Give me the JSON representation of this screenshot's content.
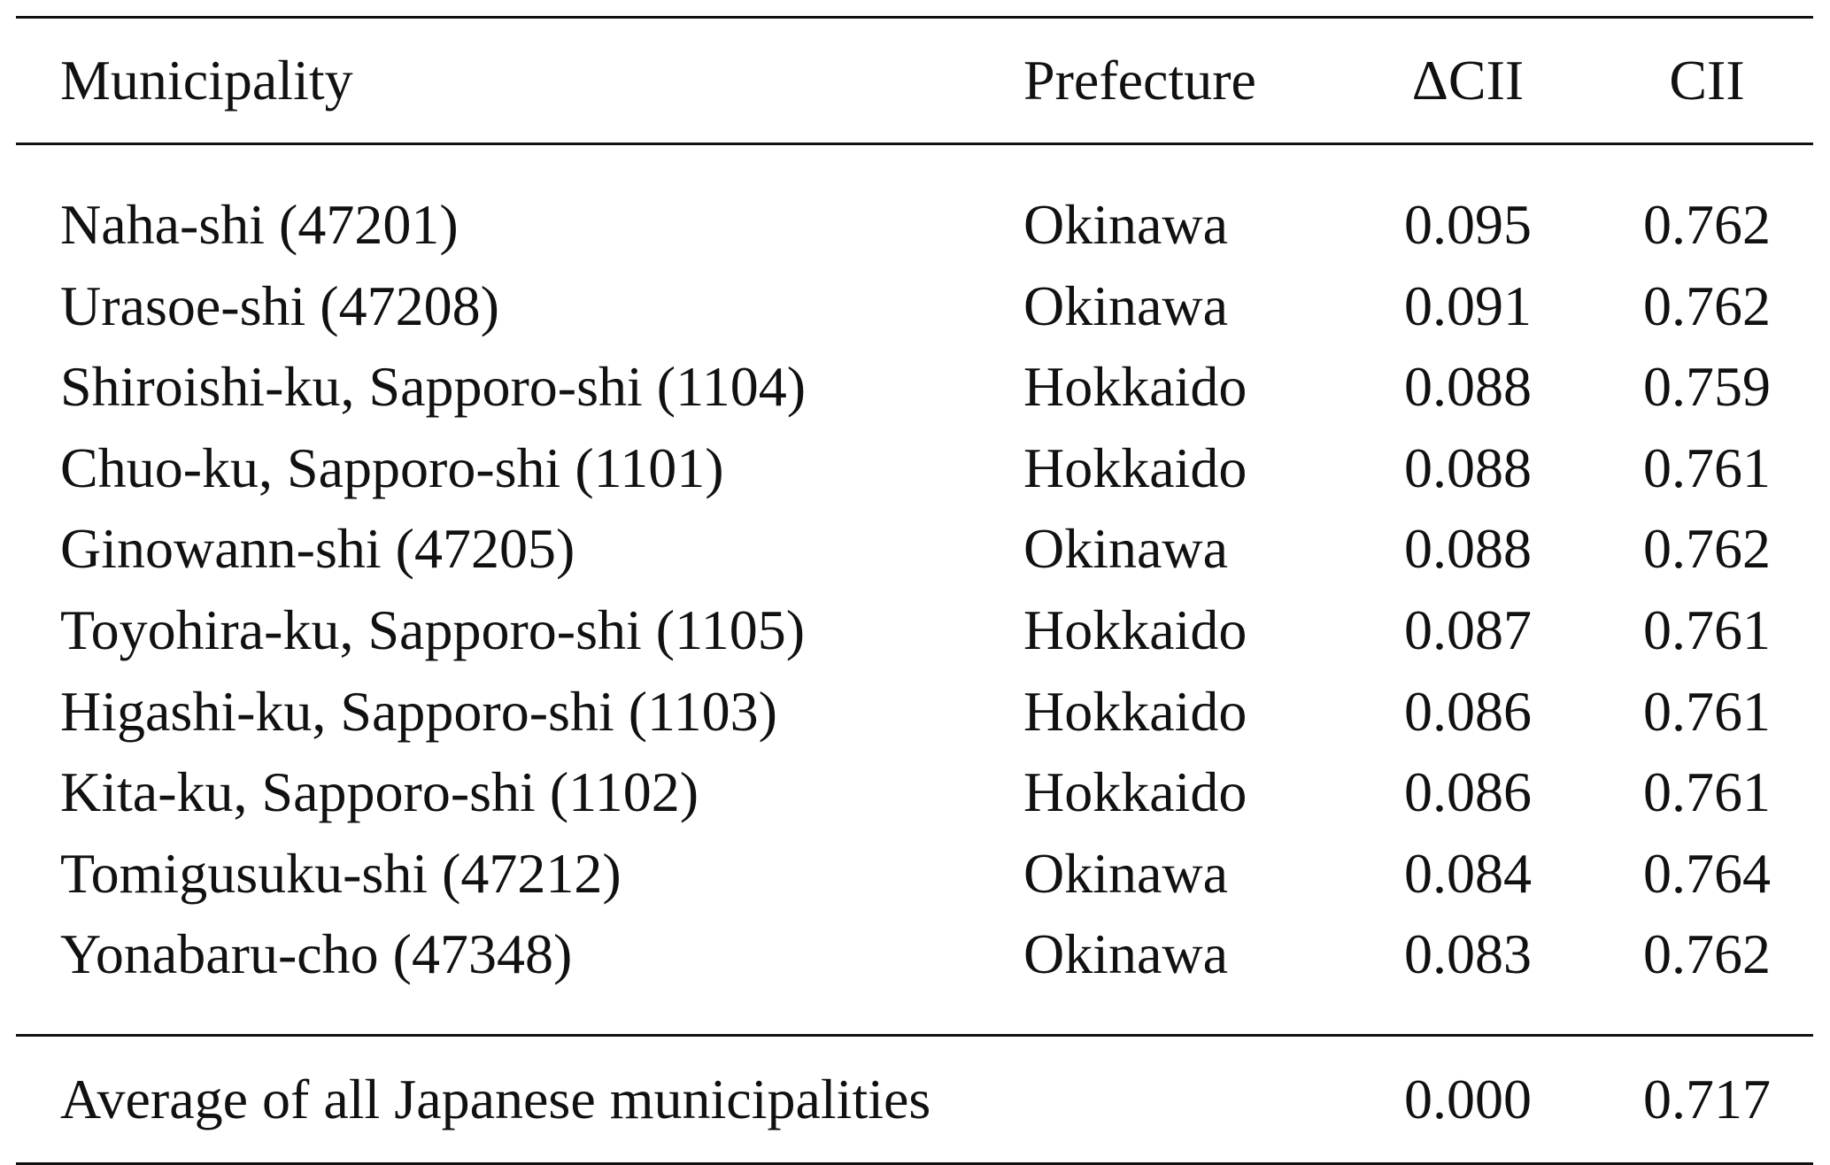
{
  "header": {
    "municipality": "Municipality",
    "prefecture": "Prefecture",
    "delta_cii": "ΔCII",
    "cii": "CII"
  },
  "rows": [
    {
      "municipality": "Naha-shi (47201)",
      "prefecture": "Okinawa",
      "delta_cii": "0.095",
      "cii": "0.762"
    },
    {
      "municipality": "Urasoe-shi (47208)",
      "prefecture": "Okinawa",
      "delta_cii": "0.091",
      "cii": "0.762"
    },
    {
      "municipality": "Shiroishi-ku, Sapporo-shi (1104)",
      "prefecture": "Hokkaido",
      "delta_cii": "0.088",
      "cii": "0.759"
    },
    {
      "municipality": "Chuo-ku, Sapporo-shi (1101)",
      "prefecture": "Hokkaido",
      "delta_cii": "0.088",
      "cii": "0.761"
    },
    {
      "municipality": "Ginowann-shi (47205)",
      "prefecture": "Okinawa",
      "delta_cii": "0.088",
      "cii": "0.762"
    },
    {
      "municipality": "Toyohira-ku, Sapporo-shi (1105)",
      "prefecture": "Hokkaido",
      "delta_cii": "0.087",
      "cii": "0.761"
    },
    {
      "municipality": "Higashi-ku, Sapporo-shi (1103)",
      "prefecture": "Hokkaido",
      "delta_cii": "0.086",
      "cii": "0.761"
    },
    {
      "municipality": "Kita-ku, Sapporo-shi (1102)",
      "prefecture": "Hokkaido",
      "delta_cii": "0.086",
      "cii": "0.761"
    },
    {
      "municipality": "Tomigusuku-shi (47212)",
      "prefecture": "Okinawa",
      "delta_cii": "0.084",
      "cii": "0.764"
    },
    {
      "municipality": "Yonabaru-cho (47348)",
      "prefecture": "Okinawa",
      "delta_cii": "0.083",
      "cii": "0.762"
    }
  ],
  "footer": {
    "label": "Average of all Japanese municipalities",
    "delta_cii": "0.000",
    "cii": "0.717"
  }
}
